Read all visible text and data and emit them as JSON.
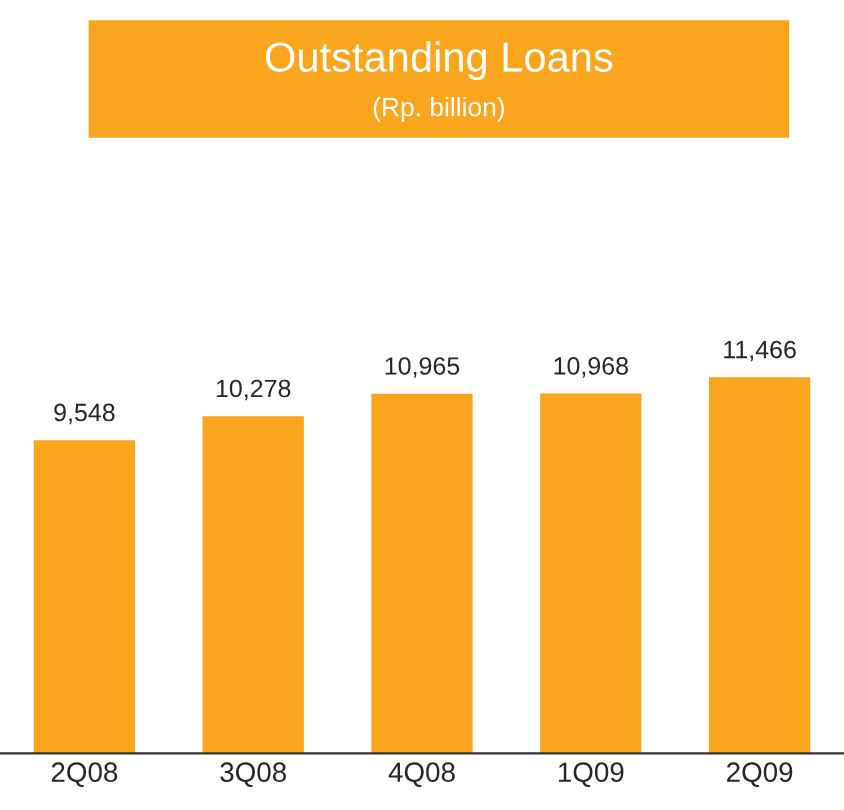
{
  "chart_data": {
    "type": "bar",
    "title": "Outstanding Loans",
    "subtitle": "(Rp. billion)",
    "categories": [
      "2Q08",
      "3Q08",
      "4Q08",
      "1Q09",
      "2Q09"
    ],
    "values": [
      9548,
      10278,
      10965,
      10968,
      11466
    ],
    "value_labels": [
      "9,548",
      "10,278",
      "10,965",
      "10,968",
      "11,466"
    ],
    "color": "#f9a61e"
  }
}
